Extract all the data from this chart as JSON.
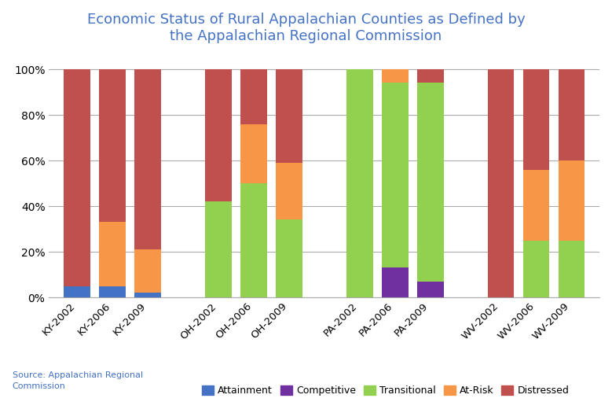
{
  "title": "Economic Status of Rural Appalachian Counties as Defined by\nthe Appalachian Regional Commission",
  "title_color": "#4472C4",
  "categories": [
    "KY-2002",
    "KY-2006",
    "KY-2009",
    "OH-2002",
    "OH-2006",
    "OH-2009",
    "PA-2002",
    "PA-2006",
    "PA-2009",
    "WV-2002",
    "WV-2006",
    "WV-2009"
  ],
  "x_positions": [
    0,
    1,
    2,
    4,
    5,
    6,
    8,
    9,
    10,
    12,
    13,
    14
  ],
  "legend_labels": [
    "Attainment",
    "Competitive",
    "Transitional",
    "At-Risk",
    "Distressed"
  ],
  "colors": [
    "#4472C4",
    "#7030A0",
    "#92D050",
    "#F79646",
    "#C0504D"
  ],
  "data": {
    "Attainment": [
      0.05,
      0.05,
      0.02,
      0.0,
      0.0,
      0.0,
      0.0,
      0.0,
      0.0,
      0.0,
      0.0,
      0.0
    ],
    "Competitive": [
      0.0,
      0.0,
      0.0,
      0.0,
      0.0,
      0.0,
      0.0,
      0.13,
      0.07,
      0.0,
      0.0,
      0.0
    ],
    "Transitional": [
      0.0,
      0.0,
      0.0,
      0.42,
      0.5,
      0.34,
      1.0,
      0.81,
      0.87,
      0.0,
      0.25,
      0.25
    ],
    "At-Risk": [
      0.0,
      0.28,
      0.19,
      0.0,
      0.26,
      0.25,
      0.0,
      0.06,
      0.0,
      0.0,
      0.31,
      0.35
    ],
    "Distressed": [
      0.95,
      0.67,
      0.79,
      0.58,
      0.24,
      0.41,
      0.0,
      0.0,
      0.06,
      1.0,
      0.44,
      0.4
    ]
  },
  "source_text": "Source: Appalachian Regional\nCommission",
  "ylabel_ticks": [
    0.0,
    0.2,
    0.4,
    0.6,
    0.8,
    1.0
  ],
  "ylabel_labels": [
    "0%",
    "20%",
    "40%",
    "60%",
    "80%",
    "100%"
  ],
  "figsize": [
    7.79,
    5.25
  ],
  "dpi": 100,
  "bar_width": 0.75
}
